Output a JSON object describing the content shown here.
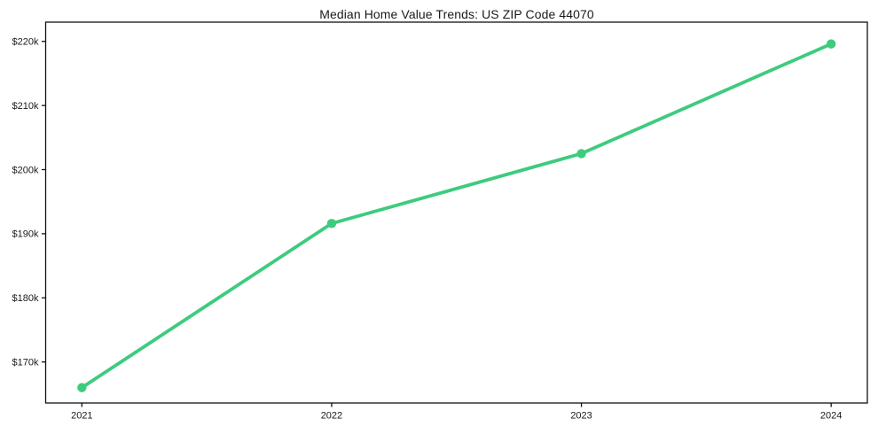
{
  "chart_data": {
    "type": "line",
    "title": "Median Home Value Trends: US ZIP Code 44070",
    "categories": [
      "2021",
      "2022",
      "2023",
      "2024"
    ],
    "values": [
      166000,
      191600,
      202500,
      219600
    ],
    "series": [
      {
        "name": "Median Home Value",
        "values": [
          166000,
          191600,
          202500,
          219600
        ]
      }
    ],
    "xlabel": "",
    "ylabel": "",
    "yticks": [
      {
        "value": 170000,
        "label": "$170k"
      },
      {
        "value": 180000,
        "label": "$180k"
      },
      {
        "value": 190000,
        "label": "$190k"
      },
      {
        "value": 200000,
        "label": "$200k"
      },
      {
        "value": 210000,
        "label": "$210k"
      },
      {
        "value": 220000,
        "label": "$220k"
      }
    ],
    "ylim": [
      163600,
      223000
    ],
    "x_edge_padding": 0.145,
    "grid": false,
    "legend": false,
    "line_color": "#3ecb7e",
    "marker_style": "circle",
    "axes_color": "#111111"
  }
}
